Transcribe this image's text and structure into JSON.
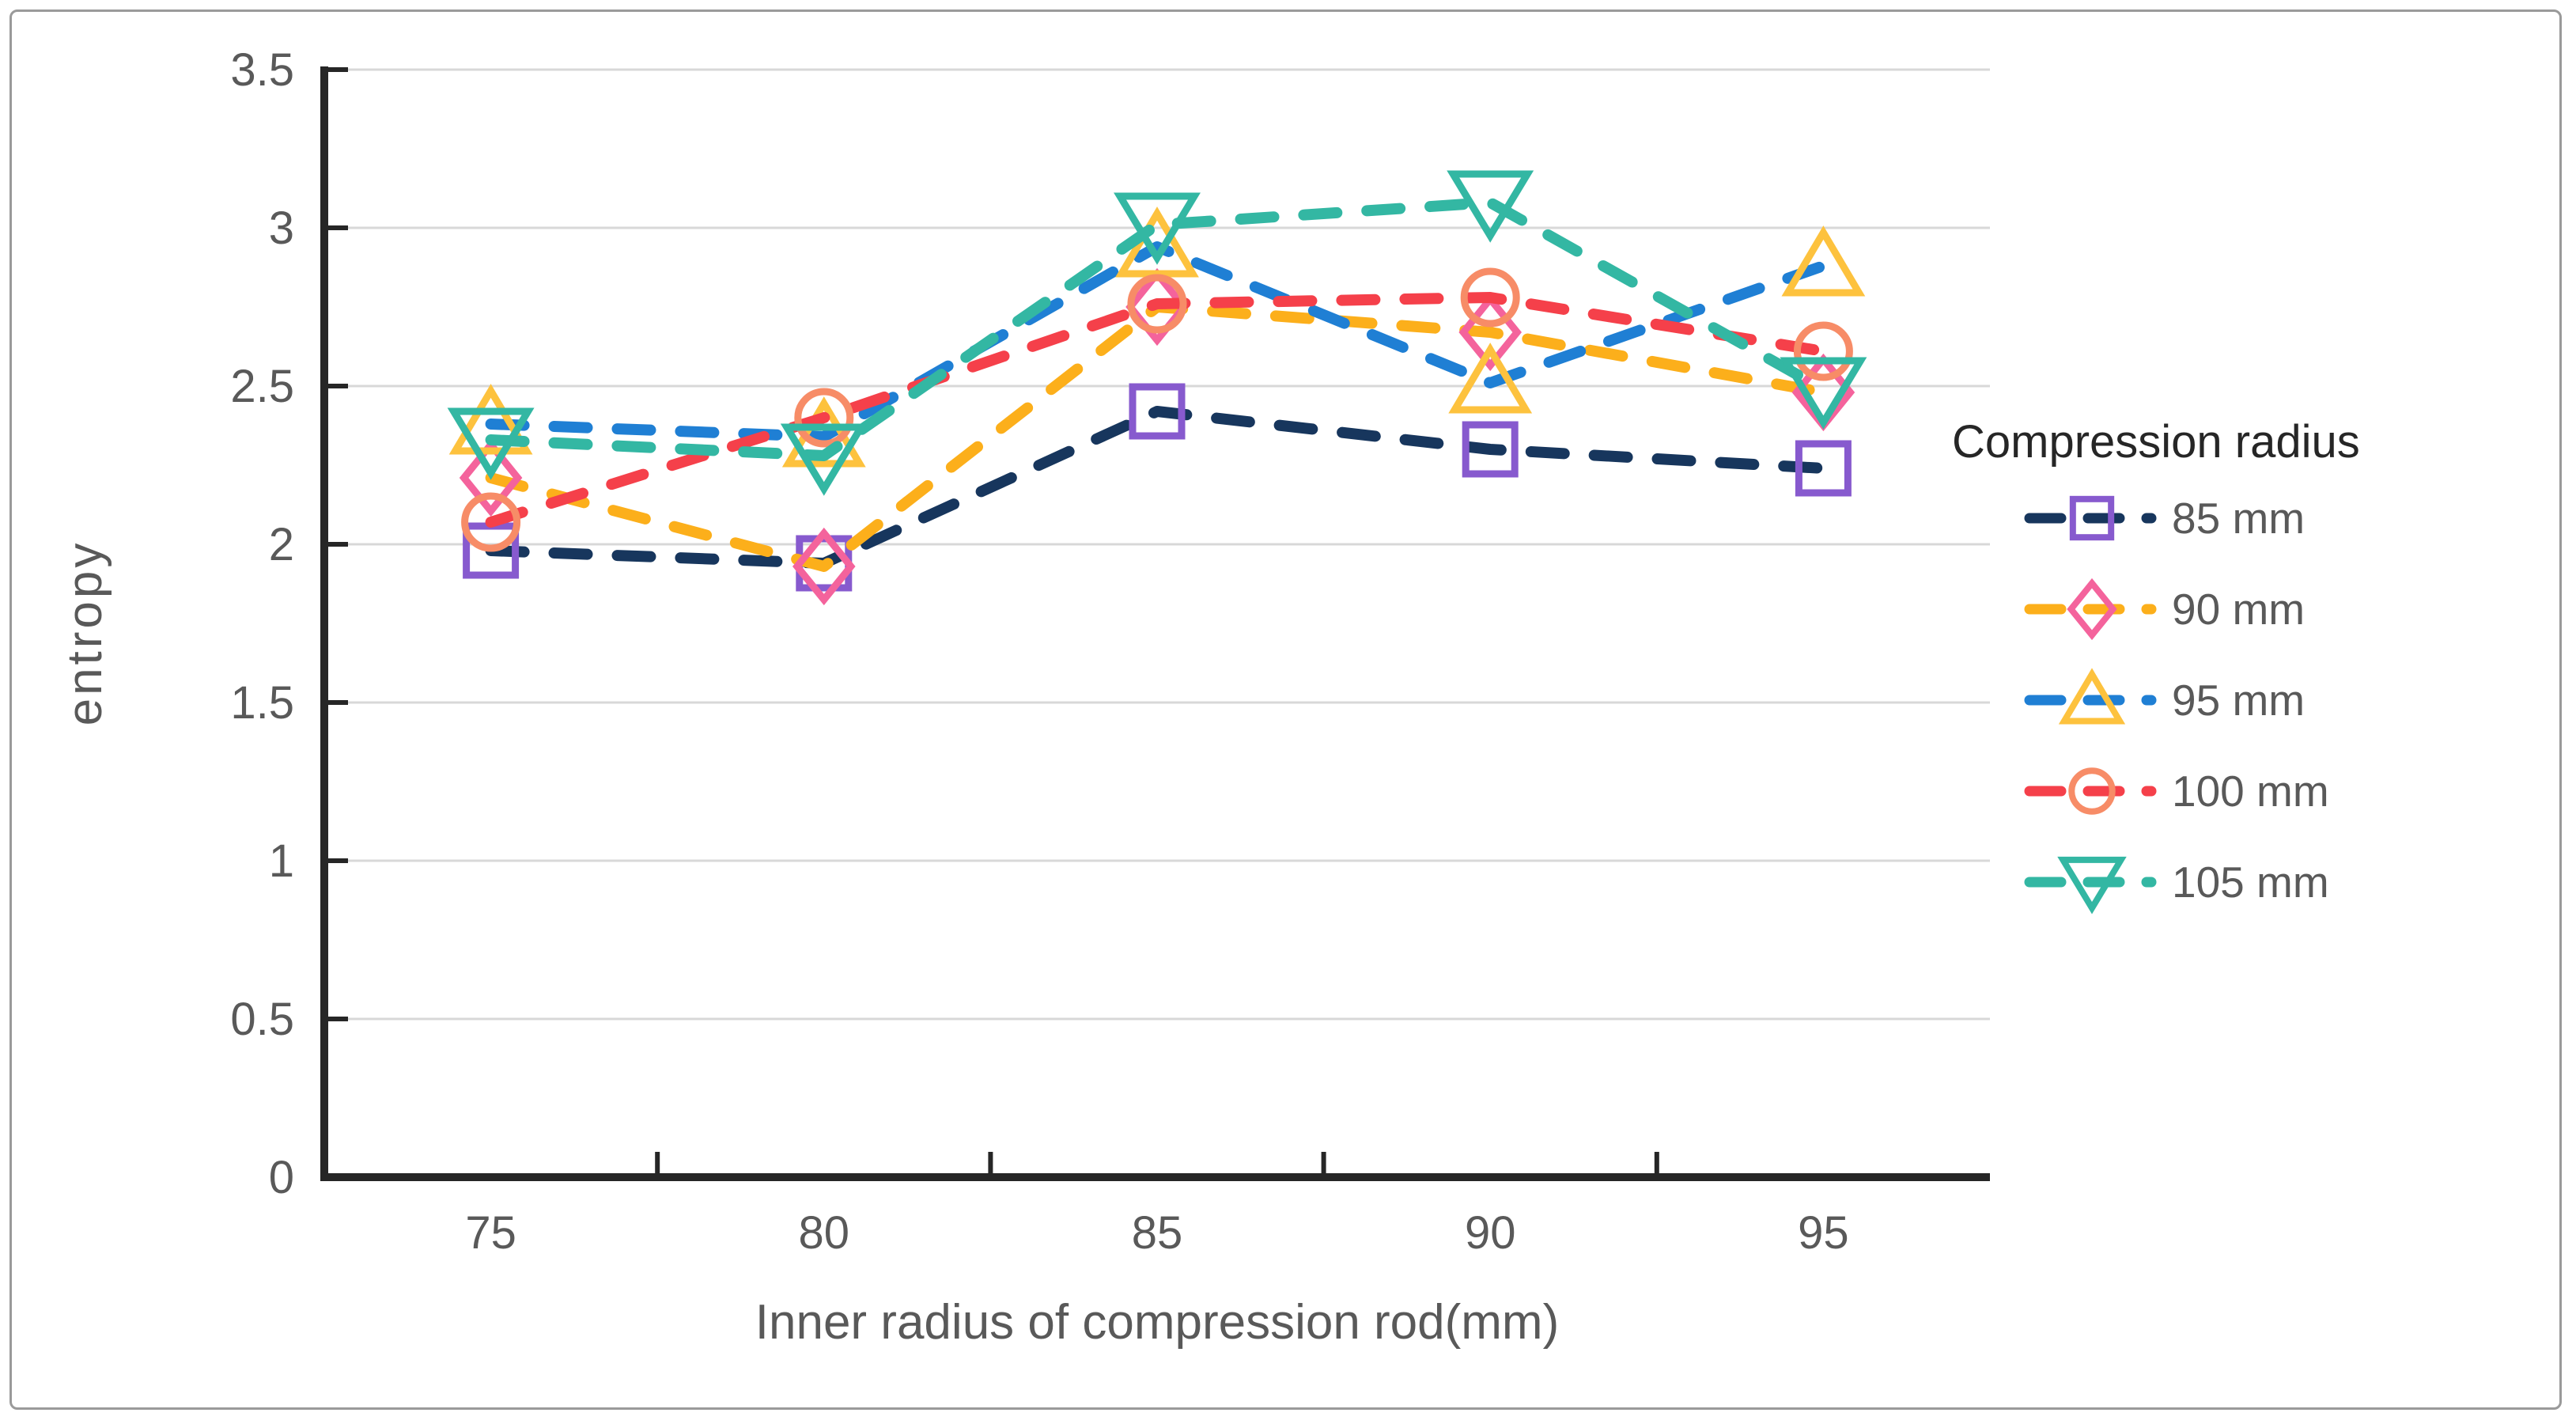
{
  "chart_data": {
    "type": "line",
    "line_style": "dashed",
    "xlabel": "Inner radius of compression rod(mm)",
    "ylabel": "entropy",
    "categories": [
      "75",
      "80",
      "85",
      "90",
      "95"
    ],
    "y_ticks": [
      0,
      0.5,
      1,
      1.5,
      2,
      2.5,
      3,
      3.5
    ],
    "y_tick_labels": [
      "0",
      "0.5",
      "1",
      "1.5",
      "2",
      "2.5",
      "3",
      "3.5"
    ],
    "ylim": [
      0,
      3.5
    ],
    "grid": "horizontal",
    "legend": {
      "title": "Compression radius",
      "position": "right"
    },
    "series": [
      {
        "name": "85 mm",
        "values": [
          1.98,
          1.94,
          2.42,
          2.3,
          2.24
        ],
        "line_color": "#17365d",
        "marker": "square",
        "marker_color": "#875ace"
      },
      {
        "name": "90 mm",
        "values": [
          2.21,
          1.93,
          2.75,
          2.67,
          2.48
        ],
        "line_color": "#fcaf1b",
        "marker": "diamond",
        "marker_color": "#f4639c"
      },
      {
        "name": "95 mm",
        "values": [
          2.38,
          2.34,
          2.94,
          2.51,
          2.88
        ],
        "line_color": "#1f7fd4",
        "marker": "triangle-up",
        "marker_color": "#fdc23e"
      },
      {
        "name": "100 mm",
        "values": [
          2.07,
          2.4,
          2.76,
          2.78,
          2.61
        ],
        "line_color": "#f5404a",
        "marker": "circle",
        "marker_color": "#f78c67"
      },
      {
        "name": "105 mm",
        "values": [
          2.33,
          2.28,
          3.01,
          3.08,
          2.49
        ],
        "line_color": "#33b7a3",
        "marker": "triangle-down",
        "marker_color": "#33b7a3"
      }
    ],
    "colors": {
      "grid": "#d8d8d8",
      "axis": "#262626",
      "tick_label": "#595959",
      "axis_title": "#595959",
      "legend_title": "#262626",
      "legend_label": "#595959",
      "frame_border": "#9a9a9a",
      "background": "#ffffff"
    }
  }
}
